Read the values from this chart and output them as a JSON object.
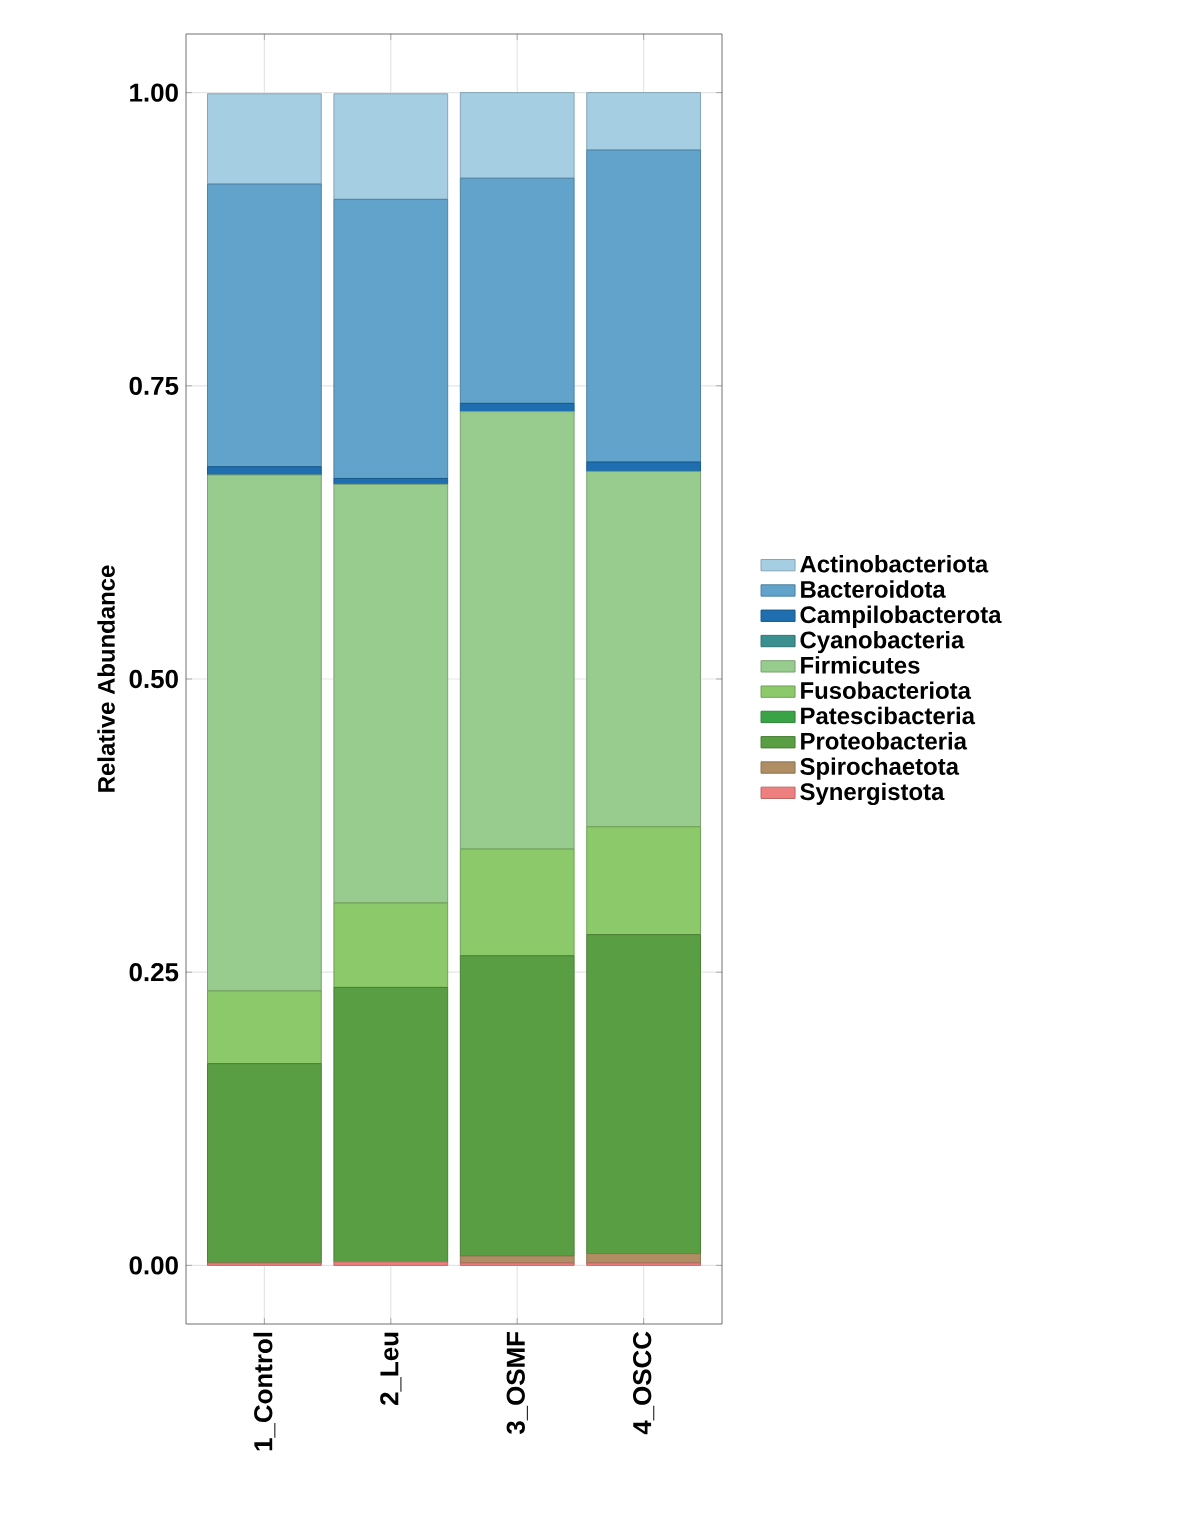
{
  "chart_data": {
    "type": "bar",
    "stacked": true,
    "ylabel": "Relative Abundance",
    "categories": [
      "1_Control",
      "2_Leu",
      "3_OSMF",
      "4_OSCC"
    ],
    "ylim": [
      -0.05,
      1.05
    ],
    "yticks": [
      {
        "value": 0,
        "label": "0.00"
      },
      {
        "value": 0.25,
        "label": "0.25"
      },
      {
        "value": 0.5,
        "label": "0.50"
      },
      {
        "value": 0.75,
        "label": "0.75"
      },
      {
        "value": 1,
        "label": "1.00"
      }
    ],
    "grid": true,
    "legend": "right",
    "series": [
      {
        "name": "Synergistota",
        "color": "#ee7f7f",
        "values": [
          0.002,
          0.003,
          0.002,
          0.002
        ]
      },
      {
        "name": "Spirochaetota",
        "color": "#b08e64",
        "values": [
          null,
          null,
          0.006,
          0.008
        ]
      },
      {
        "name": "Proteobacteria",
        "color": "#5a9e44",
        "values": [
          0.17,
          0.234,
          0.256,
          0.272
        ]
      },
      {
        "name": "Patescibacteria",
        "color": "#3aa346",
        "values": [
          0,
          0,
          0,
          0
        ]
      },
      {
        "name": "Fusobacteriota",
        "color": "#8bc96a",
        "values": [
          0.062,
          0.072,
          0.091,
          0.092
        ]
      },
      {
        "name": "Firmicutes",
        "color": "#98cb8e",
        "values": [
          0.44,
          0.357,
          0.373,
          0.303
        ]
      },
      {
        "name": "Cyanobacteria",
        "color": "#3a8f8f",
        "values": [
          0,
          0,
          0,
          0
        ]
      },
      {
        "name": "Campilobacterota",
        "color": "#1f6fb0",
        "values": [
          0.007,
          0.005,
          0.007,
          0.008
        ]
      },
      {
        "name": "Bacteroidota",
        "color": "#62a3cb",
        "values": [
          0.241,
          0.238,
          0.192,
          0.266
        ]
      },
      {
        "name": "Actinobacteriota",
        "color": "#a6cee3",
        "values": [
          0.077,
          0.09,
          0.073,
          0.049
        ]
      }
    ]
  }
}
